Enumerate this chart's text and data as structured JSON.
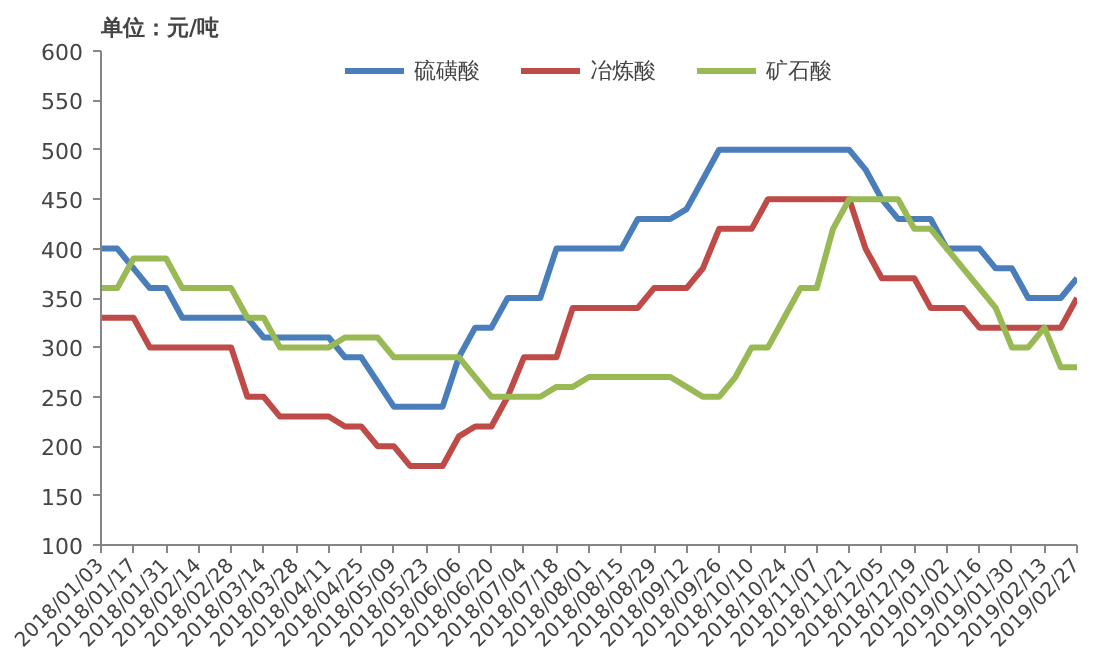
{
  "chart_data": {
    "type": "line",
    "ylabel": "单位：元/吨",
    "categories": [
      "2018/01/03",
      null,
      "2018/01/17",
      null,
      "2018/01/31",
      null,
      "2018/02/14",
      null,
      "2018/02/28",
      null,
      "2018/03/14",
      null,
      "2018/03/28",
      null,
      "2018/04/11",
      null,
      "2018/04/25",
      null,
      "2018/05/09",
      null,
      "2018/05/23",
      null,
      "2018/06/06",
      null,
      "2018/06/20",
      null,
      "2018/07/04",
      null,
      "2018/07/18",
      null,
      "2018/08/01",
      null,
      "2018/08/15",
      null,
      "2018/08/29",
      null,
      "2018/09/12",
      null,
      "2018/09/26",
      null,
      "2018/10/10",
      null,
      "2018/10/24",
      null,
      "2018/11/07",
      null,
      "2018/11/21",
      null,
      "2018/12/05",
      null,
      "2018/12/19",
      null,
      "2019/01/02",
      null,
      "2019/01/16",
      null,
      "2019/01/30",
      null,
      "2019/02/13",
      null,
      "2019/02/27"
    ],
    "series": [
      {
        "name": "硫磺酸",
        "color": "#4a7ebb",
        "values": [
          400,
          400,
          380,
          360,
          360,
          330,
          330,
          330,
          330,
          330,
          310,
          310,
          310,
          310,
          310,
          290,
          290,
          265,
          240,
          240,
          240,
          240,
          290,
          320,
          320,
          350,
          350,
          350,
          400,
          400,
          400,
          400,
          400,
          430,
          430,
          430,
          440,
          470,
          500,
          500,
          500,
          500,
          500,
          500,
          500,
          500,
          500,
          480,
          450,
          430,
          430,
          430,
          400,
          400,
          400,
          380,
          380,
          350,
          350,
          350,
          370
        ]
      },
      {
        "name": "冶炼酸",
        "color": "#be4b48",
        "values": [
          330,
          330,
          330,
          300,
          300,
          300,
          300,
          300,
          300,
          250,
          250,
          230,
          230,
          230,
          230,
          220,
          220,
          200,
          200,
          180,
          180,
          180,
          210,
          220,
          220,
          250,
          290,
          290,
          290,
          340,
          340,
          340,
          340,
          340,
          360,
          360,
          360,
          380,
          420,
          420,
          420,
          450,
          450,
          450,
          450,
          450,
          450,
          400,
          370,
          370,
          370,
          340,
          340,
          340,
          320,
          320,
          320,
          320,
          320,
          320,
          350
        ]
      },
      {
        "name": "矿石酸",
        "color": "#98b954",
        "values": [
          360,
          360,
          390,
          390,
          390,
          360,
          360,
          360,
          360,
          330,
          330,
          300,
          300,
          300,
          300,
          310,
          310,
          310,
          290,
          290,
          290,
          290,
          290,
          270,
          250,
          250,
          250,
          250,
          260,
          260,
          270,
          270,
          270,
          270,
          270,
          270,
          260,
          250,
          250,
          270,
          300,
          300,
          330,
          360,
          360,
          420,
          450,
          450,
          450,
          450,
          420,
          420,
          400,
          380,
          360,
          340,
          300,
          300,
          320,
          280,
          280
        ]
      }
    ],
    "ylim": [
      100,
      600
    ],
    "yticks": [
      100,
      150,
      200,
      250,
      300,
      350,
      400,
      450,
      500,
      550,
      600
    ],
    "grid": false,
    "legend": "top",
    "marker": "none",
    "line_style": "solid"
  }
}
